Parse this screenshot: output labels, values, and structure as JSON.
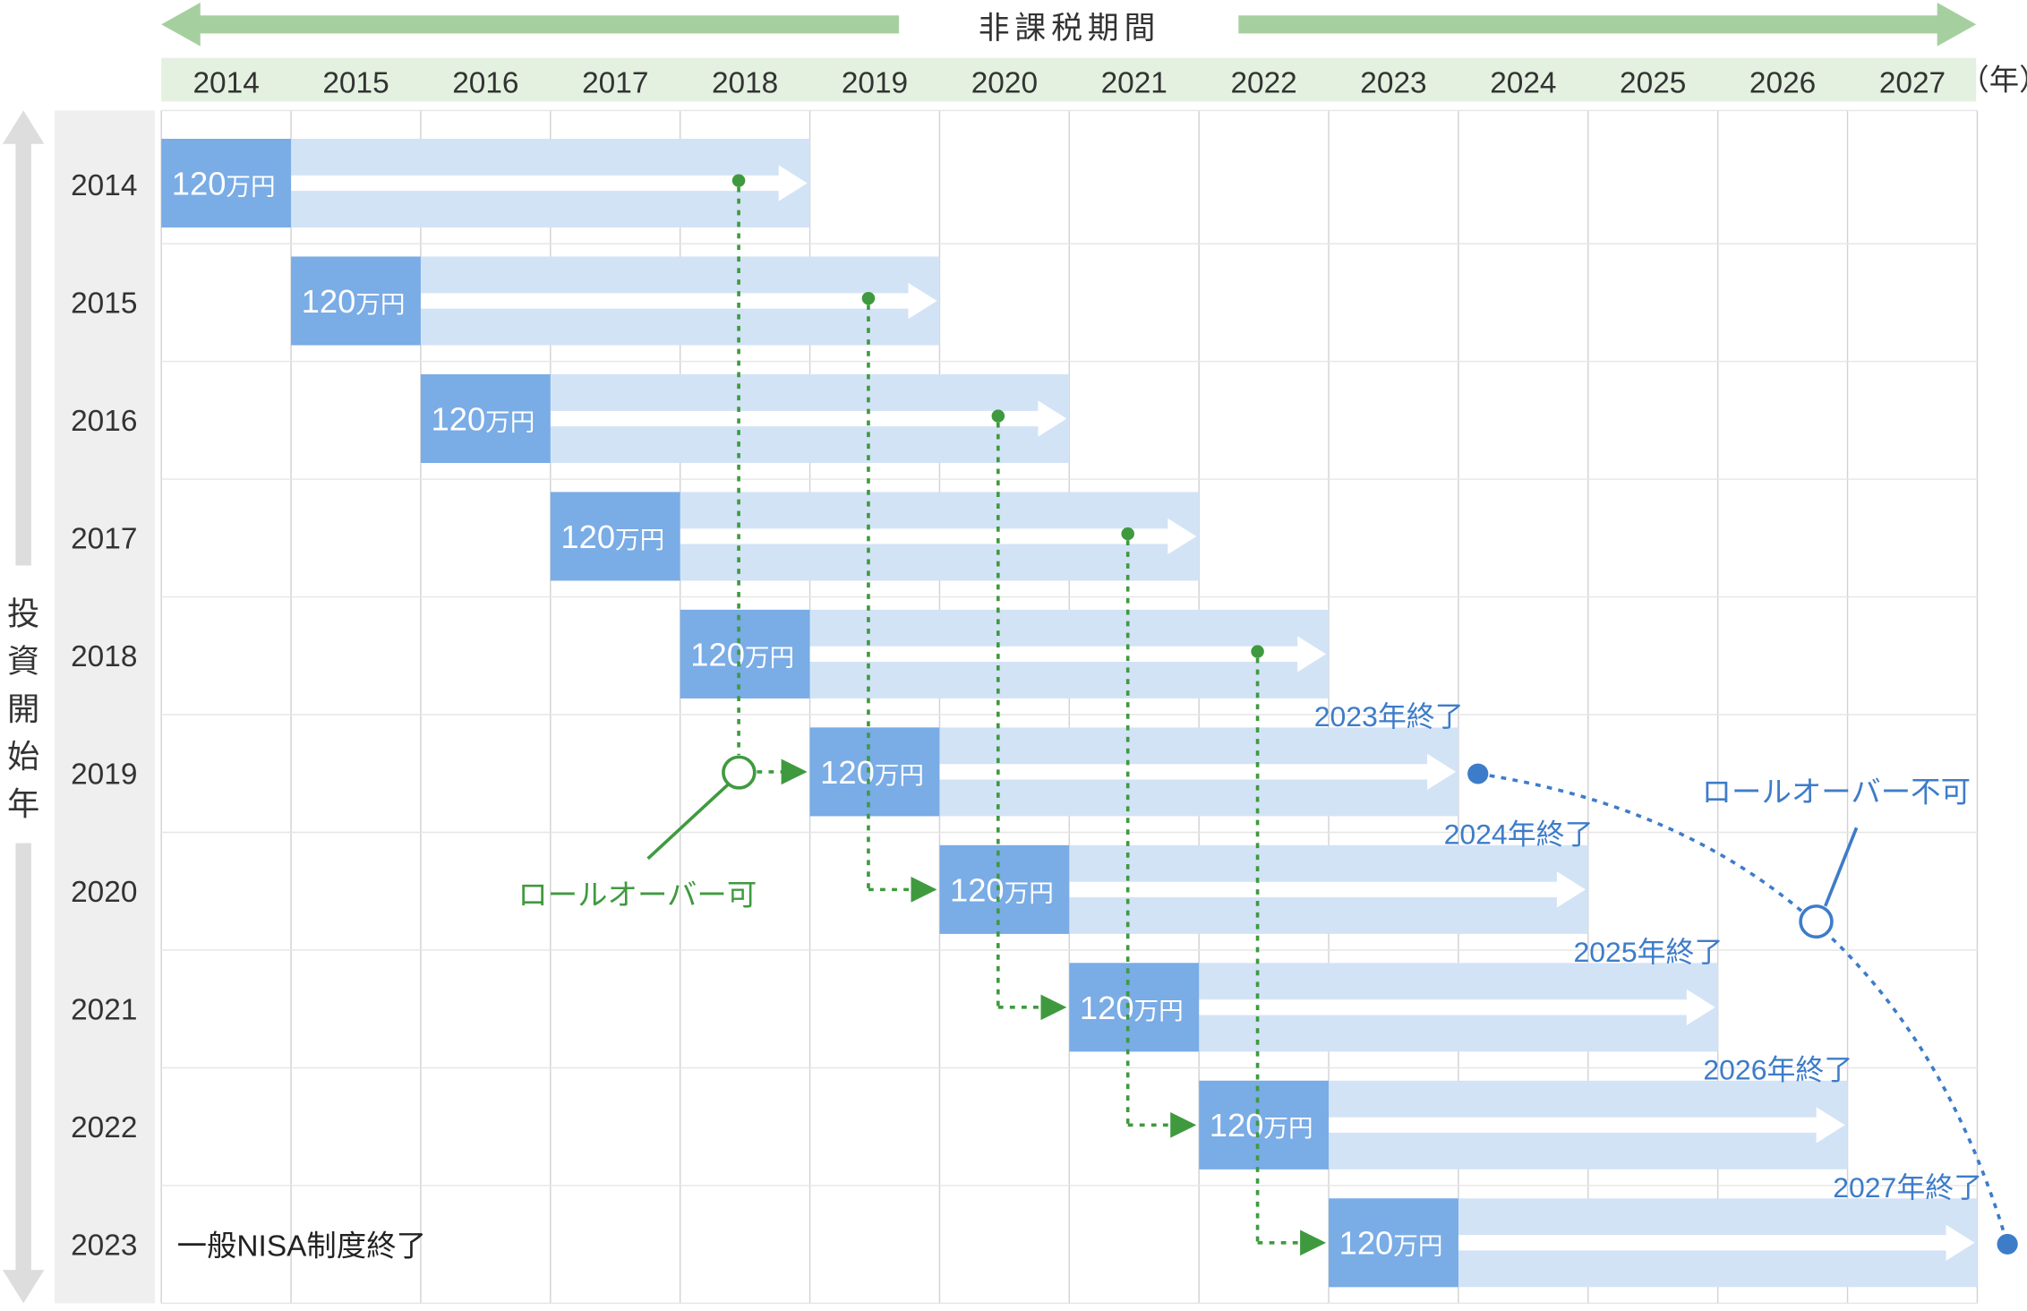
{
  "header": {
    "title": "非課税期間",
    "years": [
      "2014",
      "2015",
      "2016",
      "2017",
      "2018",
      "2019",
      "2020",
      "2021",
      "2022",
      "2023",
      "2024",
      "2025",
      "2026",
      "2027"
    ],
    "unit": "（年）"
  },
  "left_axis": {
    "label": "投資開始年",
    "rows": [
      "2014",
      "2015",
      "2016",
      "2017",
      "2018",
      "2019",
      "2020",
      "2021",
      "2022",
      "2023"
    ]
  },
  "bars": {
    "amount_number": "120",
    "amount_unit": "万円",
    "items": [
      {
        "start": "2014",
        "end": "2018",
        "end_label": ""
      },
      {
        "start": "2015",
        "end": "2019",
        "end_label": ""
      },
      {
        "start": "2016",
        "end": "2020",
        "end_label": ""
      },
      {
        "start": "2017",
        "end": "2021",
        "end_label": ""
      },
      {
        "start": "2018",
        "end": "2022",
        "end_label": ""
      },
      {
        "start": "2019",
        "end": "2023",
        "end_label": "2023年終了"
      },
      {
        "start": "2020",
        "end": "2024",
        "end_label": "2024年終了"
      },
      {
        "start": "2021",
        "end": "2025",
        "end_label": "2025年終了"
      },
      {
        "start": "2022",
        "end": "2026",
        "end_label": "2026年終了"
      },
      {
        "start": "2023",
        "end": "2027",
        "end_label": "2027年終了"
      }
    ]
  },
  "annotations": {
    "rollover_ok": "ロールオーバー可",
    "rollover_ng": "ロールオーバー不可",
    "nisa_end": "一般NISA制度終了"
  },
  "colors": {
    "header_arrow": "#a6cfa0",
    "header_band": "#e4f1e1",
    "bar_dark": "#7aace6",
    "bar_light": "#d3e3f6",
    "rollover_green": "#3f9a3f",
    "rollover_blue": "#3d7cc9",
    "grid_line": "#d3d3d3",
    "left_band": "#efefef",
    "left_arrow": "#dddddd"
  }
}
